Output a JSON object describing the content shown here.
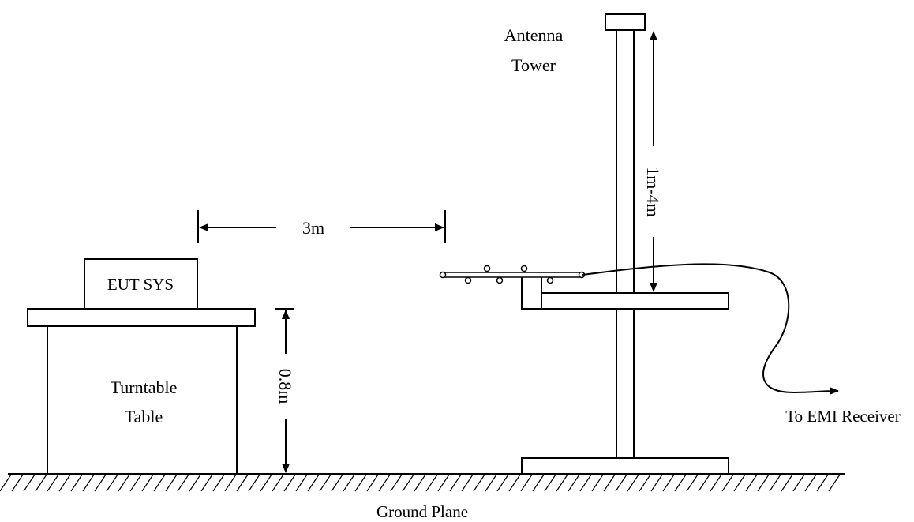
{
  "labels": {
    "antenna_tower_line1": "Antenna",
    "antenna_tower_line2": "Tower",
    "height_range": "1m-4m",
    "distance": "3m",
    "eut": "EUT SYS",
    "turntable_line1": "Turntable",
    "turntable_line2": "Table",
    "table_height": "0.8m",
    "receiver": "To EMI Receiver",
    "ground": "Ground Plane"
  },
  "colors": {
    "stroke": "#000000",
    "background": "#ffffff"
  }
}
